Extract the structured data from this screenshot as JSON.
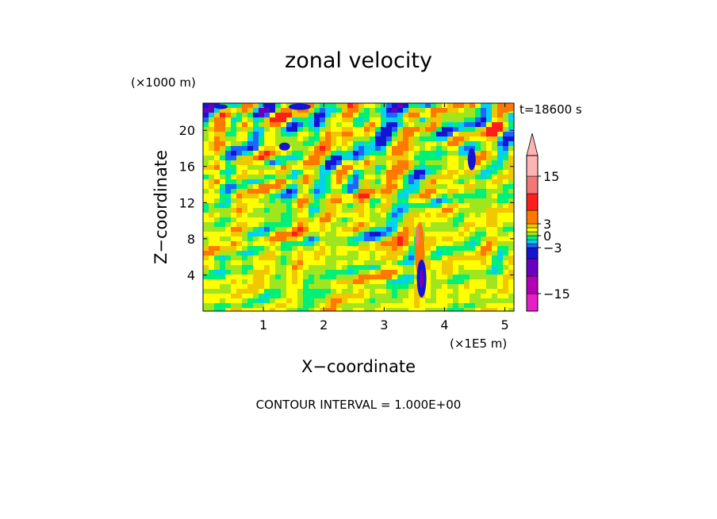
{
  "chart_data": {
    "type": "heatmap",
    "title": "zonal velocity",
    "xlabel": "X−coordinate",
    "ylabel": "Z−coordinate",
    "x_scale_label": "(×1E5 m)",
    "y_scale_label": "(×1000 m)",
    "time_label": "t=18600 s",
    "footer": "CONTOUR INTERVAL = 1.000E+00",
    "xlim": [
      0,
      5.15
    ],
    "ylim": [
      0,
      23
    ],
    "x_ticks": [
      {
        "value": 1,
        "label": "1"
      },
      {
        "value": 2,
        "label": "2"
      },
      {
        "value": 3,
        "label": "3"
      },
      {
        "value": 4,
        "label": "4"
      },
      {
        "value": 5,
        "label": "5"
      }
    ],
    "y_ticks": [
      {
        "value": 4,
        "label": "4"
      },
      {
        "value": 8,
        "label": "8"
      },
      {
        "value": 12,
        "label": "12"
      },
      {
        "value": 16,
        "label": "16"
      },
      {
        "value": 20,
        "label": "20"
      }
    ],
    "contour_interval": 1.0,
    "colorbar": {
      "levels": [
        {
          "lo": -20,
          "hi": -15,
          "color": "#e81ec8"
        },
        {
          "lo": -15,
          "hi": -10,
          "color": "#b400b4"
        },
        {
          "lo": -10,
          "hi": -5,
          "color": "#6a00c0"
        },
        {
          "lo": -5,
          "hi": -3,
          "color": "#1414d2"
        },
        {
          "lo": -3,
          "hi": -2,
          "color": "#1e64ff"
        },
        {
          "lo": -2,
          "hi": -1,
          "color": "#00d2f0"
        },
        {
          "lo": -1,
          "hi": 0,
          "color": "#00f078"
        },
        {
          "lo": 0,
          "hi": 1,
          "color": "#a0e61e"
        },
        {
          "lo": 1,
          "hi": 2,
          "color": "#ffff00"
        },
        {
          "lo": 2,
          "hi": 3,
          "color": "#f0c800"
        },
        {
          "lo": 3,
          "hi": 5,
          "color": "#ff7800"
        },
        {
          "lo": 5,
          "hi": 10,
          "color": "#ff1e1e"
        },
        {
          "lo": 10,
          "hi": 15,
          "color": "#f07878"
        },
        {
          "lo": 15,
          "hi": 20,
          "color": "#ffb4b4"
        }
      ],
      "overflow_color": "#ffb4b4",
      "ticks": [
        {
          "value": 15,
          "label": "15"
        },
        {
          "value": 3,
          "label": "3"
        },
        {
          "value": 0,
          "label": "0"
        },
        {
          "value": -3,
          "label": "−3"
        },
        {
          "value": -15,
          "label": "−15"
        }
      ]
    }
  }
}
